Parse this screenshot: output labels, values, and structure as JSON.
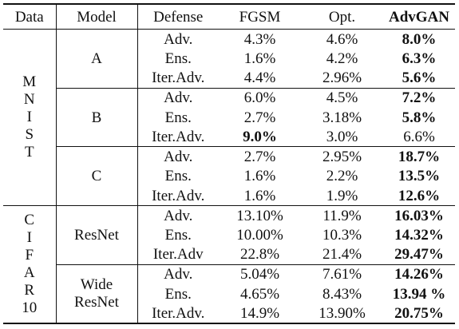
{
  "table": {
    "headers": [
      "Data",
      "Model",
      "Defense",
      "FGSM",
      "Opt.",
      "AdvGAN"
    ],
    "groups": [
      {
        "data_letters": [
          "M",
          "N",
          "I",
          "S",
          "T"
        ],
        "models": [
          {
            "lines": [
              "A"
            ],
            "rows": [
              {
                "defense": "Adv.",
                "fgsm": "4.3%",
                "opt": "4.6%",
                "advgan": "8.0%"
              },
              {
                "defense": "Ens.",
                "fgsm": "1.6%",
                "opt": "4.2%",
                "advgan": "6.3%"
              },
              {
                "defense": "Iter.Adv.",
                "fgsm": "4.4%",
                "opt": "2.96%",
                "advgan": "5.6%"
              }
            ]
          },
          {
            "lines": [
              "B"
            ],
            "rows": [
              {
                "defense": "Adv.",
                "fgsm": "6.0%",
                "opt": "4.5%",
                "advgan": "7.2%"
              },
              {
                "defense": "Ens.",
                "fgsm": "2.7%",
                "opt": "3.18%",
                "advgan": "5.8%"
              },
              {
                "defense": "Iter.Adv.",
                "fgsm": "9.0%",
                "opt": "3.0%",
                "advgan": "6.6%"
              }
            ]
          },
          {
            "lines": [
              "C"
            ],
            "rows": [
              {
                "defense": "Adv.",
                "fgsm": "2.7%",
                "opt": "2.95%",
                "advgan": "18.7%"
              },
              {
                "defense": "Ens.",
                "fgsm": "1.6%",
                "opt": "2.2%",
                "advgan": "13.5%"
              },
              {
                "defense": "Iter.Adv.",
                "fgsm": "1.6%",
                "opt": "1.9%",
                "advgan": "12.6%"
              }
            ]
          }
        ]
      },
      {
        "data_letters": [
          "C",
          "I",
          "F",
          "A",
          "R",
          "10"
        ],
        "models": [
          {
            "lines": [
              "ResNet"
            ],
            "rows": [
              {
                "defense": "Adv.",
                "fgsm": "13.10%",
                "opt": "11.9%",
                "advgan": "16.03%"
              },
              {
                "defense": "Ens.",
                "fgsm": "10.00%",
                "opt": "10.3%",
                "advgan": "14.32%"
              },
              {
                "defense": "Iter.Adv",
                "fgsm": "22.8%",
                "opt": "21.4%",
                "advgan": "29.47%"
              }
            ]
          },
          {
            "lines": [
              "Wide",
              "ResNet"
            ],
            "rows": [
              {
                "defense": "Adv.",
                "fgsm": "5.04%",
                "opt": "7.61%",
                "advgan": "14.26%"
              },
              {
                "defense": "Ens.",
                "fgsm": "4.65%",
                "opt": "8.43%",
                "advgan": "13.94 %"
              },
              {
                "defense": "Iter.Adv.",
                "fgsm": "14.9%",
                "opt": "13.90%",
                "advgan": "20.75%"
              }
            ]
          }
        ]
      }
    ]
  }
}
